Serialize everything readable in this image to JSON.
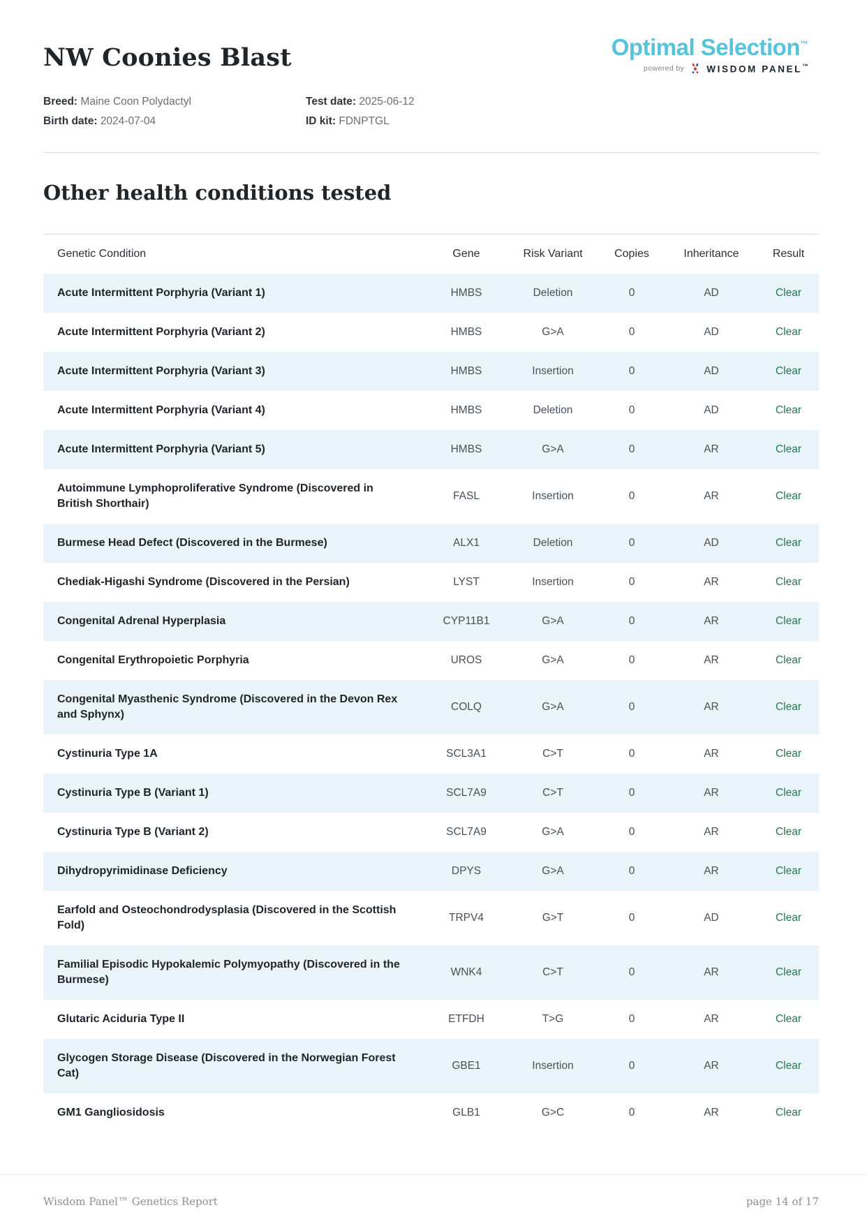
{
  "page": {
    "title": "NW Coonies Blast",
    "meta": {
      "breed_label": "Breed:",
      "breed": "Maine Coon Polydactyl",
      "birth_label": "Birth date:",
      "birth_date": "2024-07-04",
      "test_label": "Test date:",
      "test_date": "2025-06-12",
      "id_label": "ID kit:",
      "id_kit": "FDNPTGL"
    },
    "logo": {
      "brand": "Optimal Selection",
      "brand_tm": "™",
      "powered_by": "powered by",
      "wisdom": "WISDOM PANEL",
      "wisdom_tm": "™"
    },
    "section_title": "Other health conditions tested",
    "footer": {
      "left": "Wisdom Panel™ Genetics Report",
      "right": "page 14 of 17"
    }
  },
  "colors": {
    "brand_blue": "#57c3db",
    "result_clear_green": "#27764f",
    "row_alt_blue": "#eaf4fb",
    "helix_red": "#d63a26",
    "helix_blue": "#2b57a8"
  },
  "table": {
    "columns": [
      "Genetic Condition",
      "Gene",
      "Risk Variant",
      "Copies",
      "Inheritance",
      "Result"
    ],
    "rows": [
      {
        "condition": "Acute Intermittent Porphyria (Variant 1)",
        "gene": "HMBS",
        "variant": "Deletion",
        "copies": "0",
        "inheritance": "AD",
        "result": "Clear"
      },
      {
        "condition": "Acute Intermittent Porphyria (Variant 2)",
        "gene": "HMBS",
        "variant": "G>A",
        "copies": "0",
        "inheritance": "AD",
        "result": "Clear"
      },
      {
        "condition": "Acute Intermittent Porphyria (Variant 3)",
        "gene": "HMBS",
        "variant": "Insertion",
        "copies": "0",
        "inheritance": "AD",
        "result": "Clear"
      },
      {
        "condition": "Acute Intermittent Porphyria (Variant 4)",
        "gene": "HMBS",
        "variant": "Deletion",
        "copies": "0",
        "inheritance": "AD",
        "result": "Clear"
      },
      {
        "condition": "Acute Intermittent Porphyria (Variant 5)",
        "gene": "HMBS",
        "variant": "G>A",
        "copies": "0",
        "inheritance": "AR",
        "result": "Clear"
      },
      {
        "condition": "Autoimmune Lymphoproliferative Syndrome (Discovered in British Shorthair)",
        "gene": "FASL",
        "variant": "Insertion",
        "copies": "0",
        "inheritance": "AR",
        "result": "Clear"
      },
      {
        "condition": "Burmese Head Defect (Discovered in the Burmese)",
        "gene": "ALX1",
        "variant": "Deletion",
        "copies": "0",
        "inheritance": "AD",
        "result": "Clear"
      },
      {
        "condition": "Chediak-Higashi Syndrome (Discovered in the Persian)",
        "gene": "LYST",
        "variant": "Insertion",
        "copies": "0",
        "inheritance": "AR",
        "result": "Clear"
      },
      {
        "condition": "Congenital Adrenal Hyperplasia",
        "gene": "CYP11B1",
        "variant": "G>A",
        "copies": "0",
        "inheritance": "AR",
        "result": "Clear"
      },
      {
        "condition": "Congenital Erythropoietic Porphyria",
        "gene": "UROS",
        "variant": "G>A",
        "copies": "0",
        "inheritance": "AR",
        "result": "Clear"
      },
      {
        "condition": "Congenital Myasthenic Syndrome (Discovered in the Devon Rex and Sphynx)",
        "gene": "COLQ",
        "variant": "G>A",
        "copies": "0",
        "inheritance": "AR",
        "result": "Clear"
      },
      {
        "condition": "Cystinuria Type 1A",
        "gene": "SCL3A1",
        "variant": "C>T",
        "copies": "0",
        "inheritance": "AR",
        "result": "Clear"
      },
      {
        "condition": "Cystinuria Type B (Variant 1)",
        "gene": "SCL7A9",
        "variant": "C>T",
        "copies": "0",
        "inheritance": "AR",
        "result": "Clear"
      },
      {
        "condition": "Cystinuria Type B (Variant 2)",
        "gene": "SCL7A9",
        "variant": "G>A",
        "copies": "0",
        "inheritance": "AR",
        "result": "Clear"
      },
      {
        "condition": "Dihydropyrimidinase Deficiency",
        "gene": "DPYS",
        "variant": "G>A",
        "copies": "0",
        "inheritance": "AR",
        "result": "Clear"
      },
      {
        "condition": "Earfold and Osteochondrodysplasia (Discovered in the Scottish Fold)",
        "gene": "TRPV4",
        "variant": "G>T",
        "copies": "0",
        "inheritance": "AD",
        "result": "Clear"
      },
      {
        "condition": "Familial Episodic Hypokalemic Polymyopathy (Discovered in the Burmese)",
        "gene": "WNK4",
        "variant": "C>T",
        "copies": "0",
        "inheritance": "AR",
        "result": "Clear"
      },
      {
        "condition": "Glutaric Aciduria Type II",
        "gene": "ETFDH",
        "variant": "T>G",
        "copies": "0",
        "inheritance": "AR",
        "result": "Clear"
      },
      {
        "condition": "Glycogen Storage Disease (Discovered in the Norwegian Forest Cat)",
        "gene": "GBE1",
        "variant": "Insertion",
        "copies": "0",
        "inheritance": "AR",
        "result": "Clear"
      },
      {
        "condition": "GM1 Gangliosidosis",
        "gene": "GLB1",
        "variant": "G>C",
        "copies": "0",
        "inheritance": "AR",
        "result": "Clear"
      }
    ]
  }
}
